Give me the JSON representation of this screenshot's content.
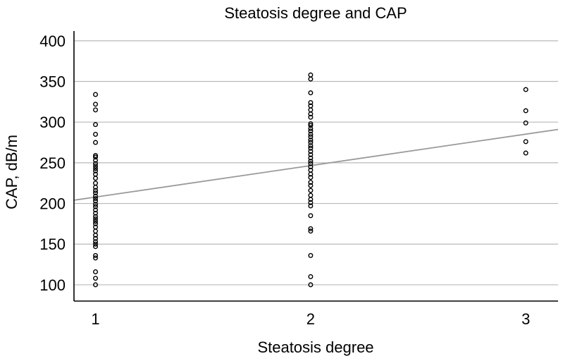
{
  "chart_data": {
    "type": "scatter",
    "title": "Steatosis degree and CAP",
    "xlabel": "Steatosis degree",
    "ylabel": "CAP, dB/m",
    "x_ticks": [
      "1",
      "2",
      "3"
    ],
    "y_ticks": [
      100,
      150,
      200,
      250,
      300,
      350,
      400
    ],
    "xlim": [
      0.9,
      3.15
    ],
    "ylim": [
      80,
      412
    ],
    "grid": true,
    "legend": "none",
    "point_color": "#000000",
    "fit_color": "#9a9a9a",
    "series": [
      {
        "x": 1,
        "values": [
          100,
          108,
          116,
          133,
          136,
          147,
          150,
          153,
          157,
          161,
          166,
          171,
          175,
          178,
          181,
          184,
          188,
          192,
          196,
          199,
          203,
          206,
          209,
          213,
          216,
          220,
          225,
          231,
          236,
          240,
          243,
          246,
          249,
          253,
          257,
          259,
          275,
          285,
          297,
          315,
          322,
          334
        ]
      },
      {
        "x": 2,
        "values": [
          100,
          110,
          136,
          166,
          169,
          185,
          197,
          201,
          205,
          210,
          216,
          222,
          226,
          232,
          236,
          241,
          245,
          249,
          252,
          256,
          260,
          264,
          268,
          271,
          275,
          278,
          282,
          285,
          289,
          292,
          296,
          298,
          306,
          310,
          315,
          320,
          324,
          336,
          353,
          358
        ]
      },
      {
        "x": 3,
        "values": [
          262,
          276,
          299,
          314,
          340
        ]
      }
    ],
    "fit_line": {
      "x": [
        0.9,
        3.15
      ],
      "y": [
        204,
        291
      ]
    }
  }
}
